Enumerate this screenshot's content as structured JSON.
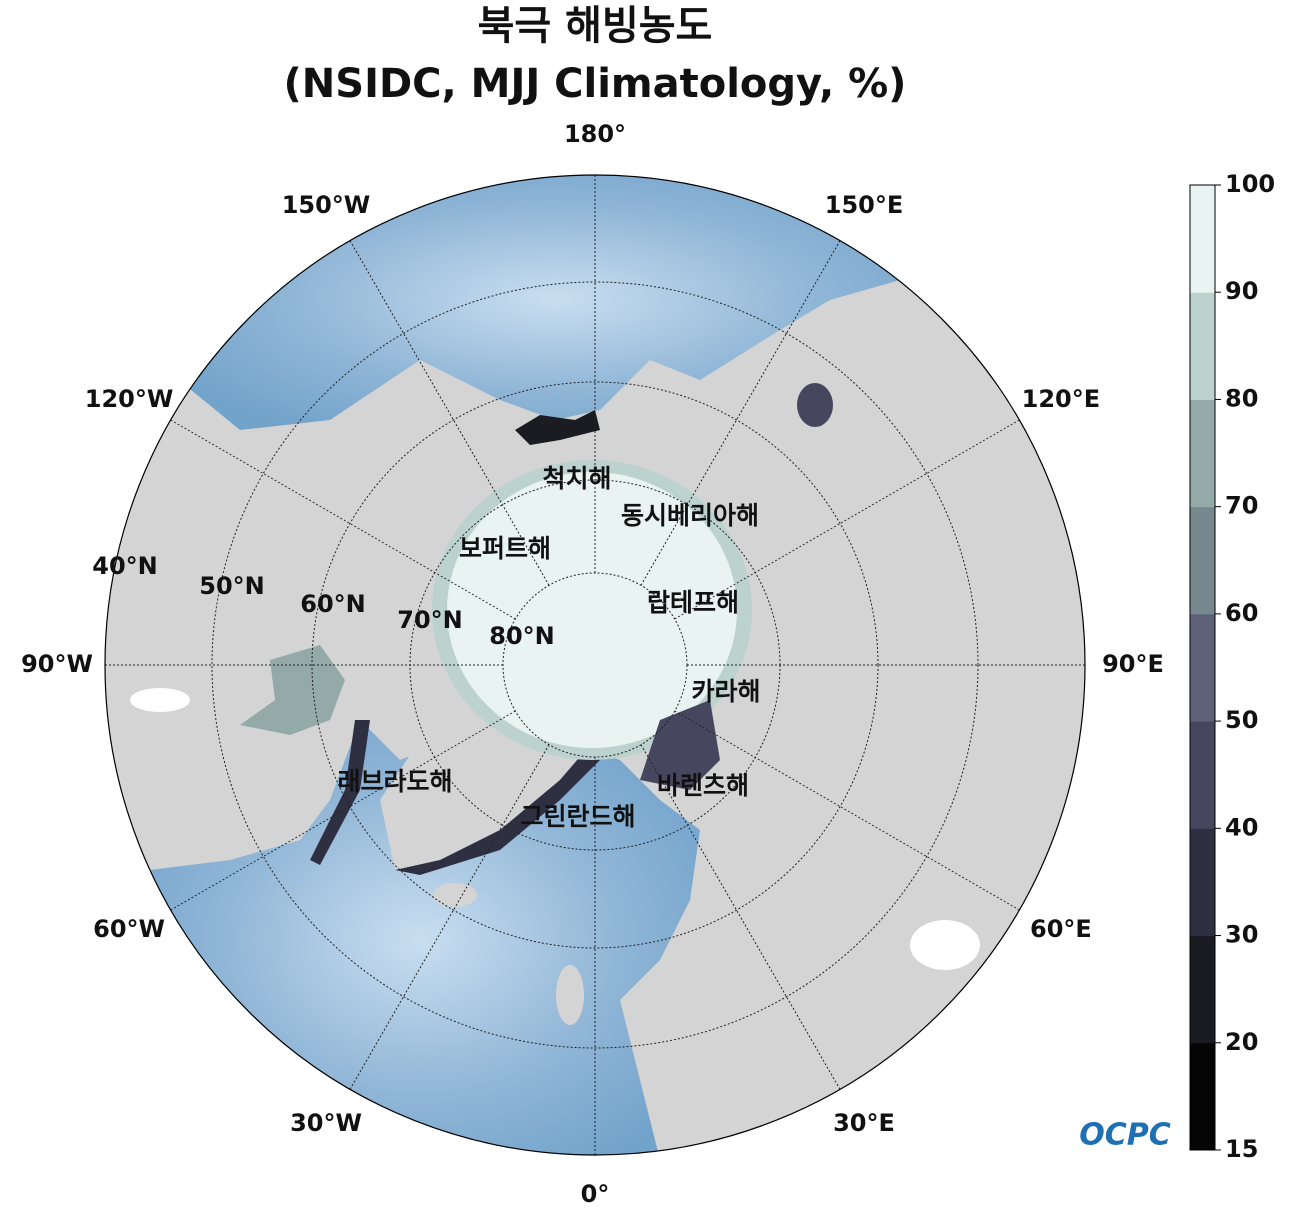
{
  "title": "북극 해빙농도",
  "subtitle": "(NSIDC, MJJ Climatology, %)",
  "map": {
    "longitude_labels": [
      "180°",
      "150°E",
      "120°E",
      "90°E",
      "60°E",
      "30°E",
      "0°",
      "30°W",
      "60°W",
      "90°W",
      "120°W",
      "150°W"
    ],
    "latitude_labels": [
      "40°N",
      "50°N",
      "60°N",
      "70°N",
      "80°N"
    ],
    "sea_labels": [
      "척치해",
      "동시베리아해",
      "보퍼트해",
      "랍테프해",
      "카라해",
      "바렌츠해",
      "래브라도해",
      "그린란드해"
    ]
  },
  "colorbar": {
    "ticks": [
      15,
      20,
      30,
      40,
      50,
      60,
      70,
      80,
      90,
      100
    ],
    "colors": [
      "#050505",
      "#1b1b22",
      "#2f2f42",
      "#46465f",
      "#5e6279",
      "#77888f",
      "#93aaa9",
      "#bbd2ce",
      "#e9f3f1"
    ]
  },
  "logo": "OCPC"
}
